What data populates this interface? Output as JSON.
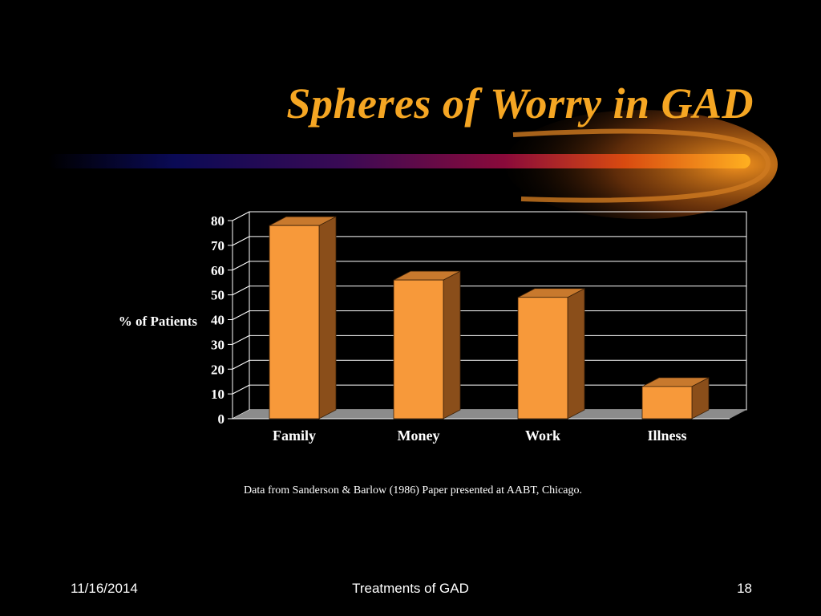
{
  "slide": {
    "title": "Spheres of Worry in GAD",
    "source_note": "Data from Sanderson & Barlow (1986) Paper presented at AABT, Chicago.",
    "footer": {
      "date": "11/16/2014",
      "center": "Treatments of GAD",
      "page_number": "18"
    }
  },
  "colors": {
    "title": "#f5a623",
    "bar_front": "#f7993a",
    "bar_top": "#c8792d",
    "bar_side": "#8a4e1a",
    "floor": "#8c8c8c",
    "grid": "#ffffff",
    "text": "#ffffff"
  },
  "chart_data": {
    "type": "bar",
    "categories": [
      "Family",
      "Money",
      "Work",
      "Illness"
    ],
    "values": [
      78,
      56,
      49,
      13
    ],
    "ylabel": "%  of Patients",
    "xlabel": "",
    "ylim": [
      0,
      80
    ],
    "yticks": [
      "0",
      "10",
      "20",
      "30",
      "40",
      "50",
      "60",
      "70",
      "80"
    ],
    "grid": true,
    "style": "3d-bar"
  }
}
